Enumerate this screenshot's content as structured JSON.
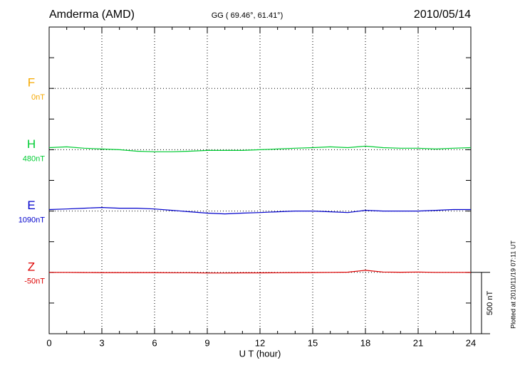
{
  "chart_data": {
    "type": "line",
    "title": "Amderma (AMD)",
    "subtitle": "GG ( 69.46°,  61.41°)",
    "date": "2010/05/14",
    "x_label": "U T (hour)",
    "footnote": "Plotted at 2010/11/19 07:11 UT",
    "x": [
      0,
      1,
      2,
      3,
      4,
      5,
      6,
      7,
      8,
      9,
      10,
      11,
      12,
      13,
      14,
      15,
      16,
      17,
      18,
      19,
      20,
      21,
      22,
      23,
      24
    ],
    "xlim": [
      0,
      24
    ],
    "xticks": [
      0,
      3,
      6,
      9,
      12,
      15,
      18,
      21,
      24
    ],
    "scale_bar": {
      "value": 500,
      "label": "500 nT"
    },
    "grid": true,
    "series": [
      {
        "name": "F",
        "color": "#f5a800",
        "offset": 0,
        "offset_label": "0nT",
        "values": [
          null,
          null,
          null,
          null,
          null,
          null,
          null,
          null,
          null,
          null,
          null,
          null,
          null,
          null,
          null,
          null,
          null,
          null,
          null,
          null,
          null,
          null,
          null,
          null,
          null
        ]
      },
      {
        "name": "H",
        "color": "#00cc33",
        "offset": 480,
        "offset_label": "480nT",
        "values": [
          497,
          503,
          492,
          486,
          480,
          468,
          463,
          463,
          468,
          474,
          474,
          474,
          480,
          486,
          492,
          497,
          503,
          497,
          509,
          497,
          492,
          492,
          486,
          492,
          497
        ]
      },
      {
        "name": "E",
        "color": "#0000cc",
        "offset": 1090,
        "offset_label": "1090nT",
        "values": [
          1102,
          1107,
          1113,
          1119,
          1113,
          1113,
          1107,
          1096,
          1084,
          1073,
          1067,
          1073,
          1078,
          1084,
          1090,
          1090,
          1084,
          1078,
          1096,
          1090,
          1090,
          1090,
          1096,
          1102,
          1102
        ]
      },
      {
        "name": "Z",
        "color": "#dd0000",
        "offset": -50,
        "offset_label": "-50nT",
        "values": [
          -50,
          -50,
          -51,
          -52,
          -52,
          -52,
          -52,
          -53,
          -53,
          -55,
          -55,
          -54,
          -54,
          -53,
          -52,
          -51,
          -50,
          -48,
          -33,
          -47,
          -49,
          -47,
          -50,
          -50,
          -50
        ]
      }
    ]
  }
}
